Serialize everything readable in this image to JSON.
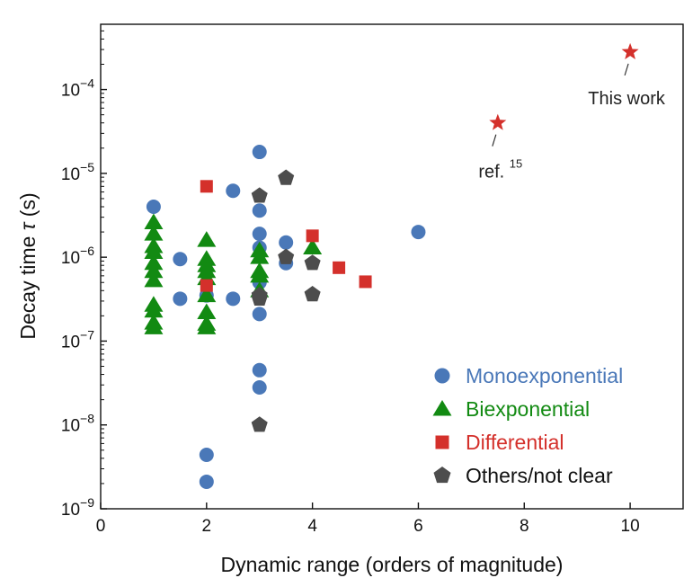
{
  "chart_data": {
    "type": "scatter",
    "xlabel": "Dynamic range (orders of magnitude)",
    "ylabel_main": "Decay time ",
    "ylabel_symbol": "τ",
    "ylabel_unit": " (s)",
    "xlim": [
      0,
      11
    ],
    "ylim": [
      1e-09,
      0.0006
    ],
    "yscale": "log",
    "x_ticks": [
      0,
      2,
      4,
      6,
      8,
      10
    ],
    "y_ticks": [
      {
        "value": 1e-09,
        "base": "10",
        "exp": "−9"
      },
      {
        "value": 1e-08,
        "base": "10",
        "exp": "−8"
      },
      {
        "value": 1e-07,
        "base": "10",
        "exp": "−7"
      },
      {
        "value": 1e-06,
        "base": "10",
        "exp": "−6"
      },
      {
        "value": 1e-05,
        "base": "10",
        "exp": "−5"
      },
      {
        "value": 0.0001,
        "base": "10",
        "exp": "−4"
      }
    ],
    "grid": false,
    "legend_position": "bottom-right",
    "series": [
      {
        "name": "Monoexponential",
        "marker": "circle",
        "color": "#4a78b8",
        "points": [
          [
            1,
            4e-06
          ],
          [
            1.5,
            9.5e-07
          ],
          [
            1.5,
            3.2e-07
          ],
          [
            2,
            4.4e-09
          ],
          [
            2,
            2.1e-09
          ],
          [
            2,
            3.5e-07
          ],
          [
            2.5,
            6.2e-06
          ],
          [
            2.5,
            3.2e-07
          ],
          [
            3,
            1.8e-05
          ],
          [
            3,
            3.6e-06
          ],
          [
            3,
            1.9e-06
          ],
          [
            3,
            1.3e-06
          ],
          [
            3,
            5e-07
          ],
          [
            3,
            2.1e-07
          ],
          [
            3,
            4.5e-08
          ],
          [
            3,
            2.8e-08
          ],
          [
            3.5,
            1.5e-06
          ],
          [
            3.5,
            8.5e-07
          ],
          [
            6,
            2e-06
          ]
        ]
      },
      {
        "name": "Biexponential",
        "marker": "triangle",
        "color": "#128a12",
        "points": [
          [
            1,
            2.6e-06
          ],
          [
            1,
            1.9e-06
          ],
          [
            1,
            1.35e-06
          ],
          [
            1,
            1.15e-06
          ],
          [
            1,
            8.5e-07
          ],
          [
            1,
            6.8e-07
          ],
          [
            1,
            5.3e-07
          ],
          [
            1,
            2.7e-07
          ],
          [
            1,
            2.3e-07
          ],
          [
            1,
            1.65e-07
          ],
          [
            1,
            1.45e-07
          ],
          [
            2,
            1.6e-06
          ],
          [
            2,
            9.5e-07
          ],
          [
            2,
            8e-07
          ],
          [
            2,
            6.8e-07
          ],
          [
            2,
            5.6e-07
          ],
          [
            2,
            3.5e-07
          ],
          [
            2,
            2.2e-07
          ],
          [
            2,
            1.6e-07
          ],
          [
            2,
            1.45e-07
          ],
          [
            3,
            1.2e-06
          ],
          [
            3,
            1e-06
          ],
          [
            3,
            6.8e-07
          ],
          [
            3,
            6e-07
          ],
          [
            3,
            4e-07
          ],
          [
            4,
            1.3e-06
          ]
        ]
      },
      {
        "name": "Differential",
        "marker": "square",
        "color": "#d4302b",
        "points": [
          [
            2,
            7e-06
          ],
          [
            2,
            4.6e-07
          ],
          [
            4,
            1.8e-06
          ],
          [
            4.5,
            7.5e-07
          ],
          [
            5,
            5.1e-07
          ]
        ]
      },
      {
        "name": "Others/not clear",
        "marker": "pentagon",
        "color": "#4d4d4d",
        "points": [
          [
            3,
            5.4e-06
          ],
          [
            3,
            3.5e-07
          ],
          [
            3,
            3.2e-07
          ],
          [
            3,
            1e-08
          ],
          [
            3.5,
            8.8e-06
          ],
          [
            3.5,
            1e-06
          ],
          [
            4,
            8.5e-07
          ],
          [
            4,
            3.6e-07
          ]
        ]
      }
    ],
    "highlights": [
      {
        "label": "This work",
        "ref_sup": "",
        "x": 10,
        "y": 0.00028,
        "color": "#d4302b",
        "marker": "star"
      },
      {
        "label": "ref. ",
        "ref_sup": "15",
        "x": 7.5,
        "y": 4e-05,
        "color": "#d4302b",
        "marker": "star"
      }
    ]
  }
}
